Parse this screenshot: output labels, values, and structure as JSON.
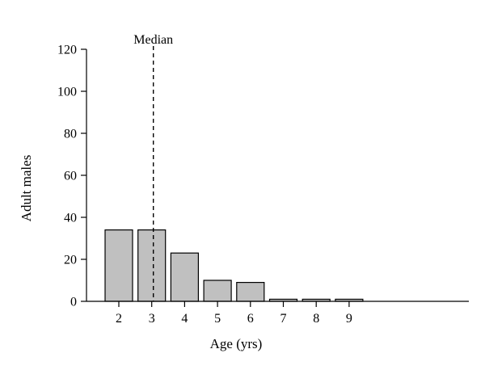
{
  "chart_data": {
    "type": "bar",
    "categories": [
      "2",
      "3",
      "4",
      "5",
      "6",
      "7",
      "8",
      "9"
    ],
    "values": [
      34,
      34,
      23,
      10,
      9,
      1,
      1,
      1
    ],
    "xlabel": "Age (yrs)",
    "ylabel": "Adult males",
    "ylim": [
      0,
      120
    ],
    "yticks": [
      0,
      20,
      40,
      60,
      80,
      100,
      120
    ],
    "bar_color": "#c0c0c0",
    "grid": false,
    "annotations": [
      {
        "type": "vertical-dashed-line",
        "x": "3",
        "label": "Median"
      }
    ]
  }
}
